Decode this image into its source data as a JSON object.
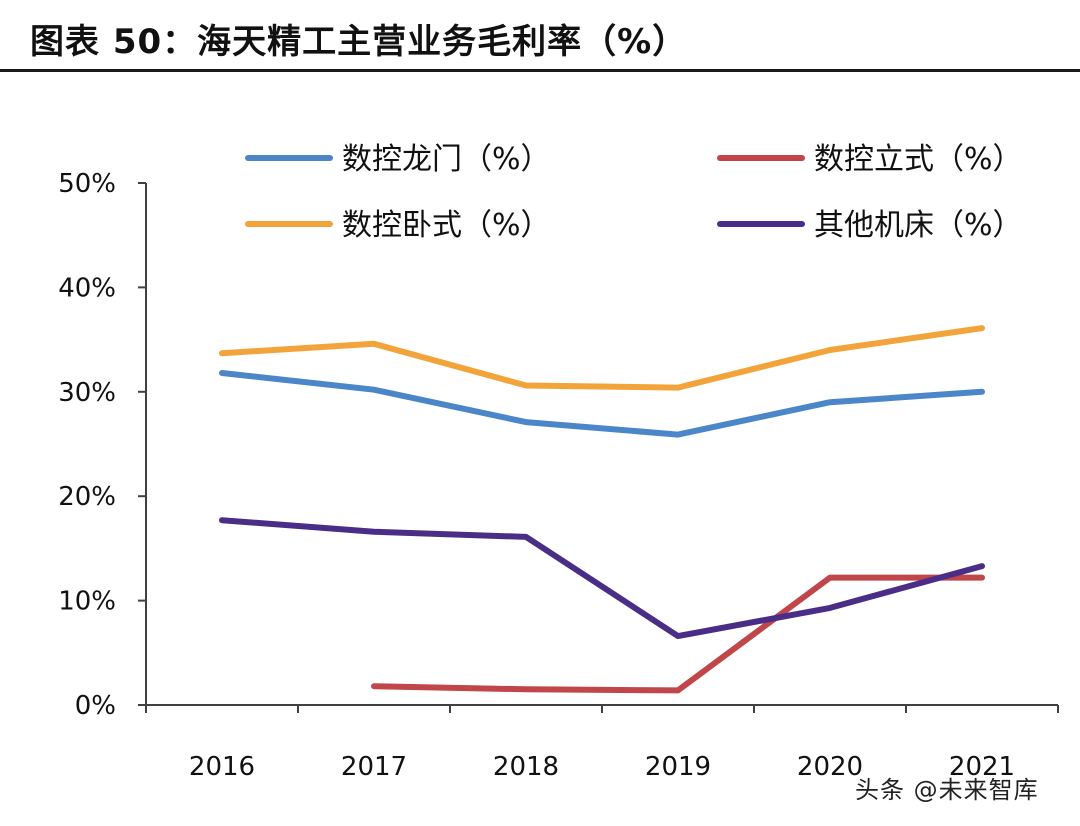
{
  "figure": {
    "title": "图表 50：海天精工主营业务毛利率（%）"
  },
  "watermark": "头条 @未来智库",
  "chart_data": {
    "type": "line",
    "title": "",
    "xlabel": "",
    "ylabel": "",
    "categories": [
      "2016",
      "2017",
      "2018",
      "2019",
      "2020",
      "2021"
    ],
    "ylim": [
      0,
      50
    ],
    "yticks": [
      "0%",
      "10%",
      "20%",
      "30%",
      "40%",
      "50%"
    ],
    "grid": false,
    "legend_position": "top",
    "series": [
      {
        "name": "数控龙门（%）",
        "color": "#4a86c8",
        "values": [
          31.8,
          30.2,
          27.1,
          25.9,
          29.0,
          30.0
        ]
      },
      {
        "name": "数控立式（%）",
        "color": "#c0464a",
        "values": [
          null,
          1.8,
          1.5,
          1.4,
          12.2,
          12.2
        ]
      },
      {
        "name": "数控卧式（%）",
        "color": "#f2a43a",
        "values": [
          33.7,
          34.6,
          30.6,
          30.4,
          34.0,
          36.1
        ]
      },
      {
        "name": "其他机床（%）",
        "color": "#4a2d86",
        "values": [
          17.7,
          16.6,
          16.1,
          6.6,
          9.3,
          13.3
        ]
      }
    ]
  }
}
